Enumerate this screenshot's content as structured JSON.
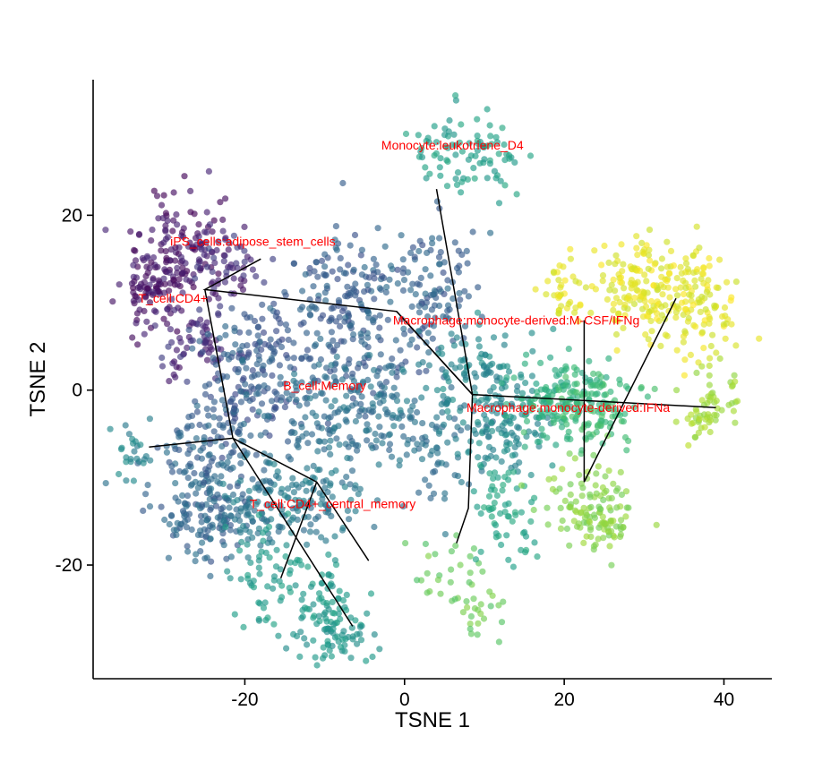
{
  "chart_data": {
    "type": "scatter",
    "title": "",
    "xlabel": "TSNE 1",
    "ylabel": "TSNE 2",
    "xlim": [
      -39,
      46
    ],
    "ylim": [
      -33,
      35.5
    ],
    "x_ticks": [
      -20,
      0,
      20,
      40
    ],
    "y_ticks": [
      -20,
      0,
      20
    ],
    "grid": false,
    "colormap": "viridis",
    "point_alpha": 0.65,
    "label_color": "#ff0000",
    "trajectory_color": "#000000",
    "clusters": [
      {
        "blobs": [
          [
            -28,
            17,
            3.6,
            4.2
          ],
          [
            -31,
            12,
            2.8,
            3.5
          ]
        ],
        "n": 210,
        "c": [
          0.0,
          0.12
        ]
      },
      {
        "blobs": [
          [
            -22,
            14,
            3,
            3
          ],
          [
            -26,
            5,
            3,
            3
          ]
        ],
        "n": 120,
        "c": [
          0.05,
          0.2
        ]
      },
      {
        "blobs": [
          [
            -17,
            4,
            4,
            5
          ],
          [
            -21,
            0,
            4,
            5
          ]
        ],
        "n": 200,
        "c": [
          0.22,
          0.34
        ]
      },
      {
        "blobs": [
          [
            -7,
            12,
            4,
            4
          ],
          [
            3,
            11,
            4,
            5
          ],
          [
            -6,
            4,
            5,
            5
          ]
        ],
        "n": 320,
        "c": [
          0.24,
          0.36
        ]
      },
      {
        "blobs": [
          [
            -12,
            -3,
            5,
            5
          ],
          [
            -4,
            -2,
            4,
            4
          ],
          [
            3,
            -5,
            5,
            5
          ]
        ],
        "n": 260,
        "c": [
          0.32,
          0.42
        ]
      },
      {
        "blobs": [
          [
            -25,
            -8,
            4,
            4
          ],
          [
            -24,
            -15,
            4,
            3.5
          ]
        ],
        "n": 220,
        "c": [
          0.26,
          0.38
        ]
      },
      {
        "blobs": [
          [
            -34,
            -7,
            1.5,
            2
          ]
        ],
        "n": 25,
        "c": [
          0.4,
          0.5
        ]
      },
      {
        "blobs": [
          [
            -11,
            -13,
            4,
            4
          ],
          [
            -19,
            -13,
            4,
            3.5
          ]
        ],
        "n": 180,
        "c": [
          0.34,
          0.46
        ]
      },
      {
        "blobs": [
          [
            -17,
            -21,
            3,
            3.5
          ],
          [
            -10,
            -24,
            3,
            3
          ]
        ],
        "n": 120,
        "c": [
          0.5,
          0.58
        ]
      },
      {
        "blobs": [
          [
            -8,
            -28,
            3,
            2
          ]
        ],
        "n": 60,
        "c": [
          0.48,
          0.56
        ]
      },
      {
        "blobs": [
          [
            5,
            -21,
            3,
            2.5
          ],
          [
            9,
            -25,
            2,
            2
          ]
        ],
        "n": 50,
        "c": [
          0.72,
          0.82
        ]
      },
      {
        "blobs": [
          [
            9,
            2,
            5,
            4
          ],
          [
            12,
            -5,
            4,
            3
          ]
        ],
        "n": 200,
        "c": [
          0.42,
          0.52
        ]
      },
      {
        "blobs": [
          [
            12,
            -12,
            2,
            3
          ],
          [
            13,
            -16,
            3,
            3
          ]
        ],
        "n": 60,
        "c": [
          0.55,
          0.62
        ]
      },
      {
        "blobs": [
          [
            19,
            -1,
            4,
            3
          ]
        ],
        "n": 110,
        "c": [
          0.58,
          0.66
        ]
      },
      {
        "blobs": [
          [
            24,
            -2,
            4,
            3
          ]
        ],
        "n": 120,
        "c": [
          0.64,
          0.72
        ]
      },
      {
        "blobs": [
          [
            23,
            -12,
            4,
            3
          ],
          [
            25,
            -15,
            3,
            2
          ]
        ],
        "n": 130,
        "c": [
          0.78,
          0.86
        ]
      },
      {
        "blobs": [
          [
            36,
            10,
            4,
            4
          ],
          [
            29,
            12,
            3.5,
            3.5
          ]
        ],
        "n": 260,
        "c": [
          0.92,
          1.0
        ]
      },
      {
        "blobs": [
          [
            20,
            11,
            2,
            3
          ]
        ],
        "n": 40,
        "c": [
          0.93,
          1.0
        ]
      },
      {
        "blobs": [
          [
            39,
            0,
            2.5,
            3
          ],
          [
            37,
            -3,
            2,
            2
          ]
        ],
        "n": 60,
        "c": [
          0.82,
          0.9
        ]
      },
      {
        "blobs": [
          [
            5,
            28,
            3,
            3
          ],
          [
            11,
            27,
            3,
            3
          ]
        ],
        "n": 90,
        "c": [
          0.52,
          0.6
        ]
      }
    ],
    "trajectory": [
      [
        [
          -18,
          15
        ],
        [
          -25,
          11.5
        ],
        [
          -1,
          9
        ],
        [
          8.5,
          -0.5
        ],
        [
          39,
          -2
        ]
      ],
      [
        [
          -25,
          11.5
        ],
        [
          -21.5,
          -5.5
        ],
        [
          -32,
          -6.5
        ]
      ],
      [
        [
          -21.5,
          -5.5
        ],
        [
          -11,
          -10.5
        ],
        [
          -4.5,
          -19.5
        ]
      ],
      [
        [
          -11,
          -10.5
        ],
        [
          -15.5,
          -21.5
        ]
      ],
      [
        [
          -21.5,
          -5.5
        ],
        [
          -6.5,
          -27
        ]
      ],
      [
        [
          4,
          23
        ],
        [
          8.5,
          -0.5
        ],
        [
          8,
          -13.5
        ],
        [
          6.5,
          -17.5
        ]
      ],
      [
        [
          -1,
          9
        ],
        [
          8.5,
          -0.5
        ]
      ],
      [
        [
          22.5,
          8
        ],
        [
          22.5,
          -10.5
        ],
        [
          34,
          10.5
        ]
      ]
    ],
    "annotations": [
      {
        "text": "Monocyte:leukotriene_D4",
        "x": 6,
        "y": 27.5
      },
      {
        "text": "iPS_cells:adipose_stem_cells",
        "x": -19,
        "y": 16.5
      },
      {
        "text": "T_cell:CD4+",
        "x": -29,
        "y": 10
      },
      {
        "text": "Macrophage:monocyte-derived:M-CSF/IFNg",
        "x": 14,
        "y": 7.5
      },
      {
        "text": "B_cell:Memory",
        "x": -10,
        "y": 0
      },
      {
        "text": "Macrophage:monocyte-derived:IFNa",
        "x": 20.5,
        "y": -2.5
      },
      {
        "text": "T_cell:CD4+_central_memory",
        "x": -9,
        "y": -13.5
      }
    ]
  }
}
